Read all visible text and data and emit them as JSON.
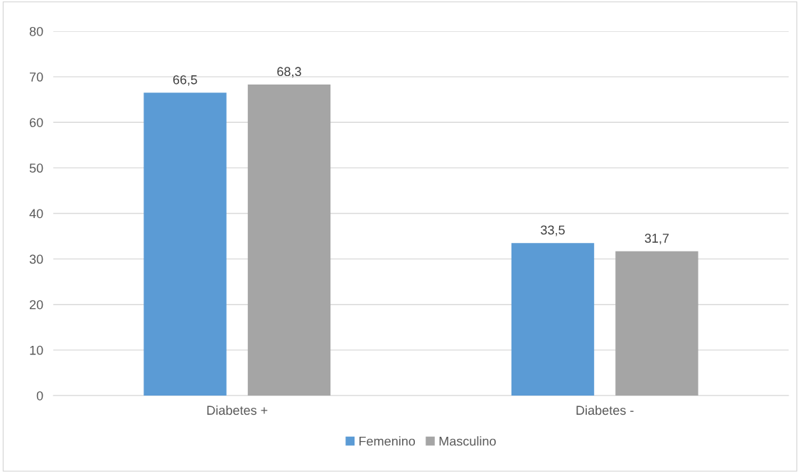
{
  "chart_data": {
    "type": "bar",
    "categories": [
      "Diabetes +",
      "Diabetes -"
    ],
    "series": [
      {
        "name": "Femenino",
        "color": "#5b9bd5",
        "values": [
          66.5,
          33.5
        ],
        "value_labels": [
          "66,5",
          "33,5"
        ]
      },
      {
        "name": "Masculino",
        "color": "#a5a5a5",
        "values": [
          68.3,
          31.7
        ],
        "value_labels": [
          "68,3",
          "31,7"
        ]
      }
    ],
    "ylim": [
      0,
      80
    ],
    "yticks": [
      0,
      10,
      20,
      30,
      40,
      50,
      60,
      70,
      80
    ],
    "grid": "y",
    "legend": "bottom"
  }
}
